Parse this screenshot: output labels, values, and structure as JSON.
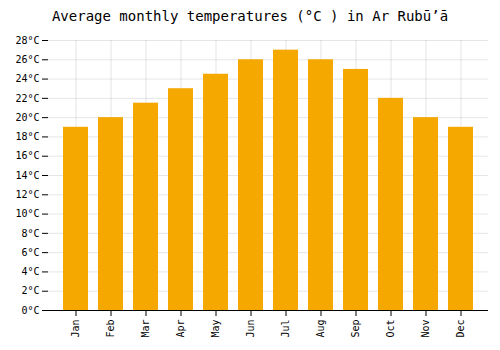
{
  "chart_data": {
    "type": "bar",
    "title": "Average monthly temperatures (°C ) in Ar Rubūʼā",
    "categories": [
      "Jan",
      "Feb",
      "Mar",
      "Apr",
      "May",
      "Jun",
      "Jul",
      "Aug",
      "Sep",
      "Oct",
      "Nov",
      "Dec"
    ],
    "values": [
      19,
      20,
      21.5,
      23,
      24.5,
      26,
      27,
      26,
      25,
      22,
      20,
      19
    ],
    "color": "#F5A800",
    "ylim": [
      0,
      28
    ],
    "yticks": [
      {
        "value": 0,
        "label": "0°C"
      },
      {
        "value": 2,
        "label": "2°C"
      },
      {
        "value": 4,
        "label": "4°C"
      },
      {
        "value": 6,
        "label": "6°C"
      },
      {
        "value": 8,
        "label": "8°C"
      },
      {
        "value": 10,
        "label": "10°C"
      },
      {
        "value": 12,
        "label": "12°C"
      },
      {
        "value": 14,
        "label": "14°C"
      },
      {
        "value": 16,
        "label": "16°C"
      },
      {
        "value": 18,
        "label": "18°C"
      },
      {
        "value": 20,
        "label": "20°C"
      },
      {
        "value": 22,
        "label": "22°C"
      },
      {
        "value": 24,
        "label": "24°C"
      },
      {
        "value": 26,
        "label": "26°C"
      },
      {
        "value": 28,
        "label": "28°C"
      }
    ],
    "grid": true
  }
}
